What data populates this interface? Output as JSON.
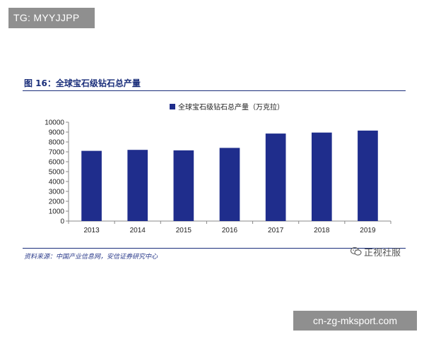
{
  "badges": {
    "tg": "TG: MYYJJPP",
    "site": "cn-zg-mksport.com"
  },
  "figure": {
    "title": "图 16：全球宝石级钻石总产量",
    "source": "资料来源：中国产业信息网，安信证券研究中心"
  },
  "watermark": {
    "text": "正视社服",
    "icon": "wechat-icon"
  },
  "chart_data": {
    "type": "bar",
    "categories": [
      "2013",
      "2014",
      "2015",
      "2016",
      "2017",
      "2018",
      "2019"
    ],
    "series": [
      {
        "name": "全球宝石级钻石总产量（万克拉）",
        "values": [
          7100,
          7200,
          7150,
          7400,
          8850,
          8950,
          9150
        ],
        "color": "#1f2d8c"
      }
    ],
    "ylim": [
      0,
      10000
    ],
    "yticks": [
      0,
      1000,
      2000,
      3000,
      4000,
      5000,
      6000,
      7000,
      8000,
      9000,
      10000
    ],
    "grid": false,
    "legend": "top-center"
  }
}
